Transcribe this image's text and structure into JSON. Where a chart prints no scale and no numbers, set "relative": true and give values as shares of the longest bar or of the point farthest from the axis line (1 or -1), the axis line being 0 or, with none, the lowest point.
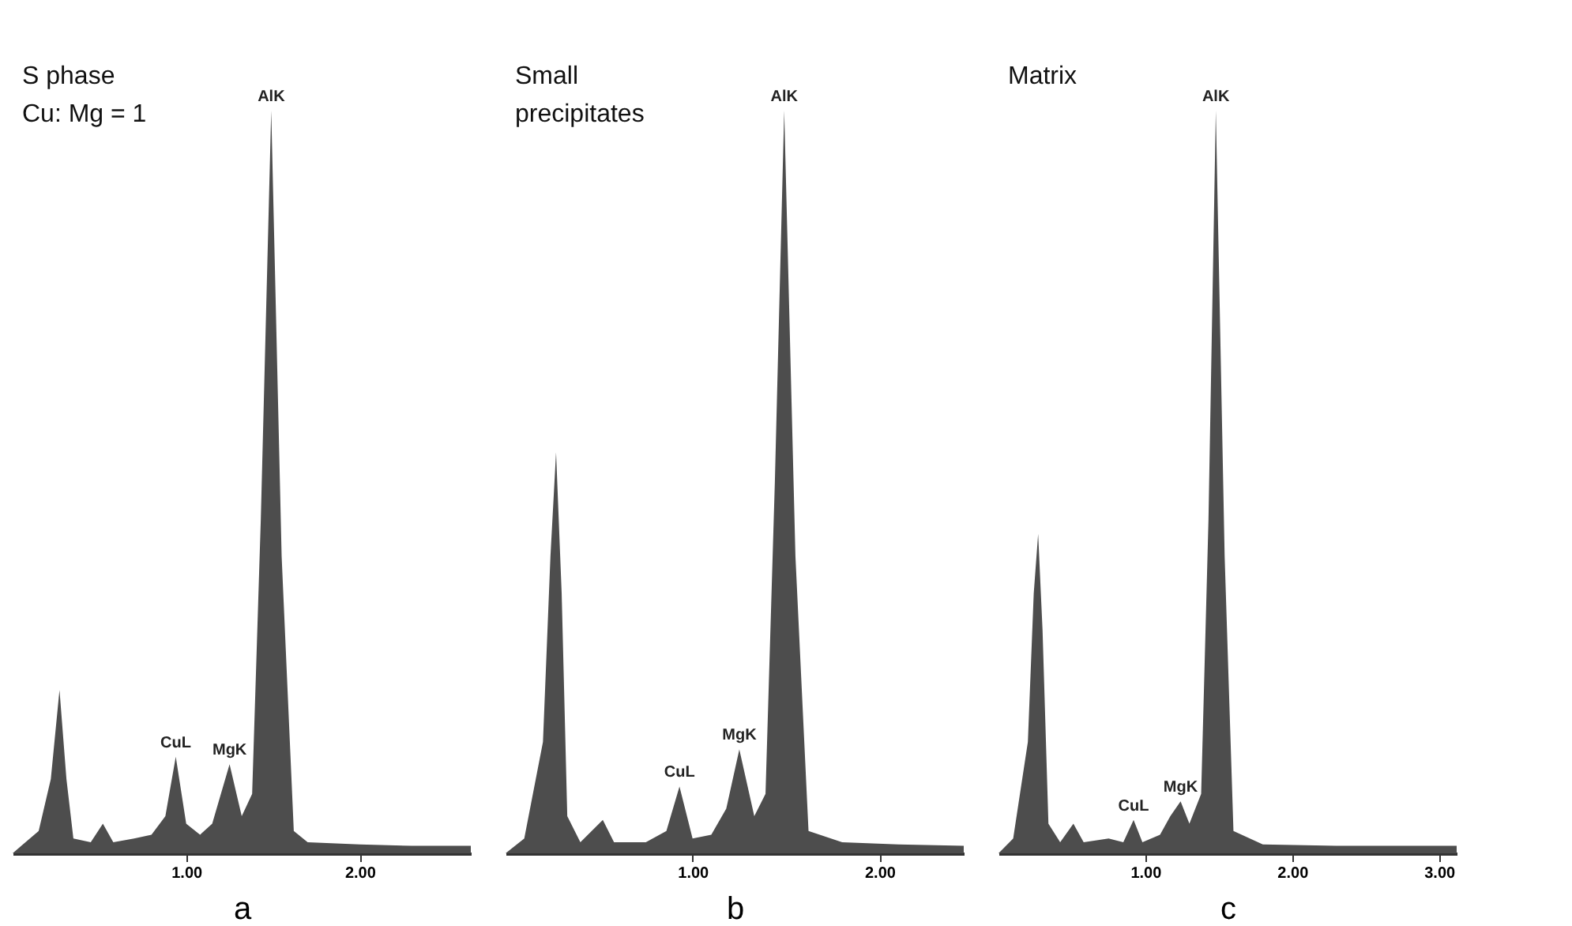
{
  "chart_data": [
    {
      "type": "area",
      "title": "S phase\nCu: Mg = 1",
      "xlabel": "a",
      "relative": true,
      "grid": false,
      "xlim": [
        0,
        2.64
      ],
      "xticks": [
        {
          "value": 1,
          "label": "1.00"
        },
        {
          "value": 2,
          "label": "2.00"
        }
      ],
      "tick_labels": "x",
      "series": [
        {
          "color": "#4d4d4d",
          "x": [
            0,
            0.05,
            0.15,
            0.22,
            0.27,
            0.31,
            0.35,
            0.45,
            0.52,
            0.58,
            0.7,
            0.8,
            0.88,
            0.94,
            1.0,
            1.08,
            1.15,
            1.25,
            1.32,
            1.38,
            1.43,
            1.49,
            1.55,
            1.62,
            1.7,
            2.0,
            2.3,
            2.64
          ],
          "values": [
            0,
            0.01,
            0.03,
            0.1,
            0.22,
            0.1,
            0.02,
            0.015,
            0.04,
            0.015,
            0.02,
            0.025,
            0.05,
            0.13,
            0.04,
            0.025,
            0.04,
            0.12,
            0.05,
            0.08,
            0.45,
            1.0,
            0.4,
            0.03,
            0.015,
            0.012,
            0.01,
            0.01
          ]
        }
      ],
      "annotations": [
        {
          "text": "AlK",
          "x": 1.49,
          "y": 1.0
        },
        {
          "text": "CuL",
          "x": 0.94,
          "y": 0.13
        },
        {
          "text": "MgK",
          "x": 1.25,
          "y": 0.12
        }
      ]
    },
    {
      "type": "area",
      "title": "Small\nprecipitates",
      "xlabel": "b",
      "relative": true,
      "grid": false,
      "xlim": [
        0,
        2.45
      ],
      "xticks": [
        {
          "value": 1,
          "label": "1.00"
        },
        {
          "value": 2,
          "label": "2.00"
        }
      ],
      "tick_labels": "x",
      "series": [
        {
          "color": "#4d4d4d",
          "x": [
            0,
            0.1,
            0.2,
            0.24,
            0.27,
            0.3,
            0.33,
            0.4,
            0.52,
            0.58,
            0.75,
            0.86,
            0.93,
            1.0,
            1.1,
            1.18,
            1.25,
            1.33,
            1.39,
            1.44,
            1.49,
            1.55,
            1.62,
            1.8,
            2.1,
            2.45
          ],
          "values": [
            0,
            0.02,
            0.15,
            0.4,
            0.54,
            0.35,
            0.05,
            0.015,
            0.045,
            0.015,
            0.015,
            0.03,
            0.09,
            0.02,
            0.025,
            0.06,
            0.14,
            0.05,
            0.08,
            0.5,
            1.0,
            0.4,
            0.03,
            0.015,
            0.012,
            0.01
          ]
        }
      ],
      "annotations": [
        {
          "text": "AlK",
          "x": 1.49,
          "y": 1.0
        },
        {
          "text": "CuL",
          "x": 0.93,
          "y": 0.09
        },
        {
          "text": "MgK",
          "x": 1.25,
          "y": 0.14
        }
      ]
    },
    {
      "type": "area",
      "title": "Matrix",
      "xlabel": "c",
      "relative": true,
      "grid": false,
      "xlim": [
        0,
        3.12
      ],
      "xticks": [
        {
          "value": 1,
          "label": "1.00"
        },
        {
          "value": 2,
          "label": "2.00"
        },
        {
          "value": 3,
          "label": "3.00"
        }
      ],
      "tick_labels": "x",
      "series": [
        {
          "color": "#4d4d4d",
          "x": [
            0,
            0.1,
            0.2,
            0.24,
            0.27,
            0.3,
            0.34,
            0.42,
            0.51,
            0.58,
            0.75,
            0.85,
            0.92,
            0.98,
            1.1,
            1.17,
            1.24,
            1.3,
            1.38,
            1.43,
            1.48,
            1.54,
            1.6,
            1.8,
            2.3,
            2.8,
            3.12
          ],
          "values": [
            0,
            0.02,
            0.15,
            0.35,
            0.43,
            0.3,
            0.04,
            0.015,
            0.04,
            0.015,
            0.02,
            0.015,
            0.045,
            0.015,
            0.025,
            0.05,
            0.07,
            0.04,
            0.08,
            0.45,
            1.0,
            0.4,
            0.03,
            0.012,
            0.01,
            0.01,
            0.01
          ]
        }
      ],
      "annotations": [
        {
          "text": "AlK",
          "x": 1.48,
          "y": 1.0
        },
        {
          "text": "CuL",
          "x": 0.92,
          "y": 0.045
        },
        {
          "text": "MgK",
          "x": 1.24,
          "y": 0.07
        }
      ]
    }
  ]
}
